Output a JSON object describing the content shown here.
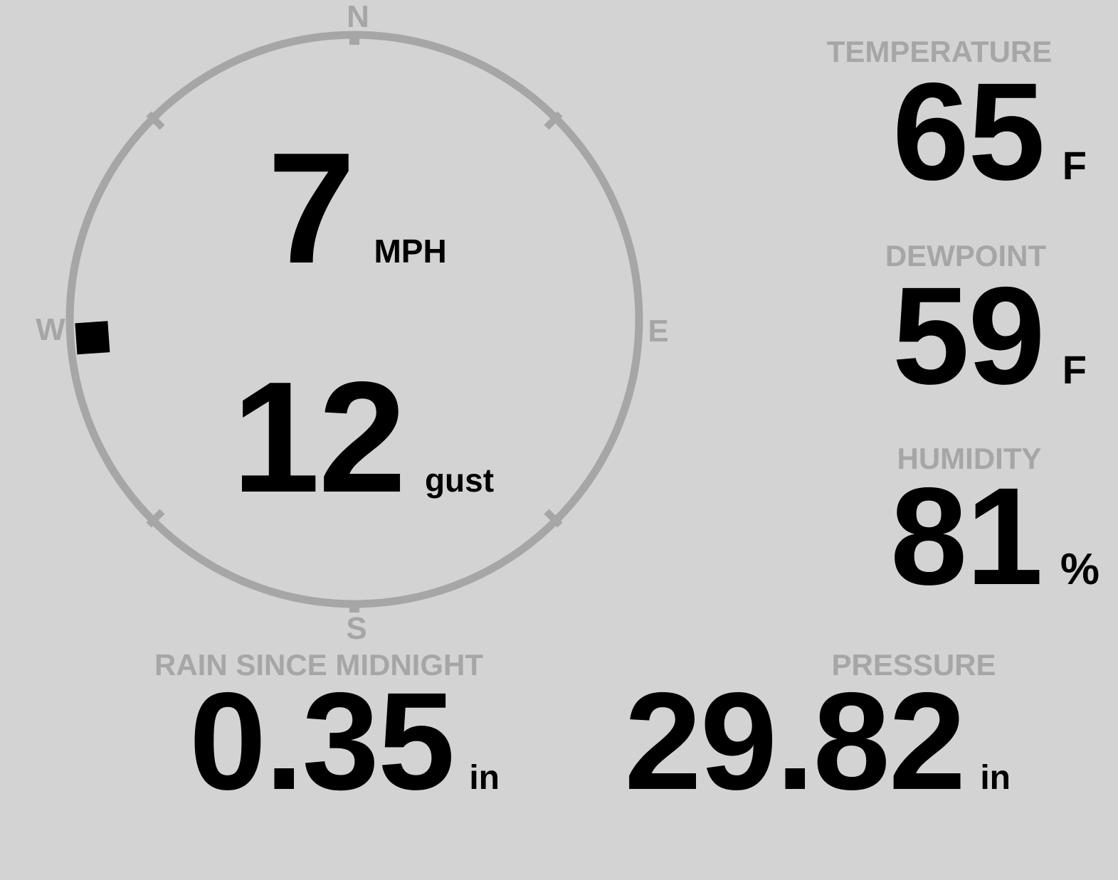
{
  "theme": {
    "background": "#d3d3d3",
    "muted_gray": "#a6a6a6",
    "ink": "#000000"
  },
  "wind": {
    "speed": "7",
    "speed_unit": "MPH",
    "gust": "12",
    "gust_label": "gust",
    "direction_deg": 266,
    "compass": {
      "north": "N",
      "east": "E",
      "south": "S",
      "west": "W"
    }
  },
  "metrics": {
    "temperature": {
      "label": "TEMPERATURE",
      "value": "65",
      "unit": "F"
    },
    "dewpoint": {
      "label": "DEWPOINT",
      "value": "59",
      "unit": "F"
    },
    "humidity": {
      "label": "HUMIDITY",
      "value": "81",
      "unit": "%"
    },
    "rain": {
      "label": "RAIN SINCE MIDNIGHT",
      "value": "0.35",
      "unit": "in"
    },
    "pressure": {
      "label": "PRESSURE",
      "value": "29.82",
      "unit": "in"
    }
  }
}
